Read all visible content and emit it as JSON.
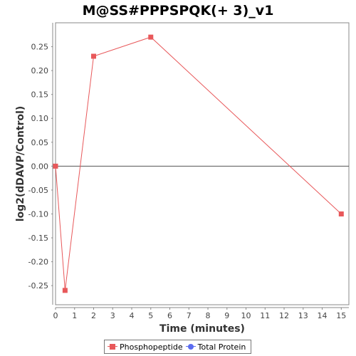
{
  "chart_data": {
    "type": "line",
    "title": "M@SS#PPPSPQK(+ 3)_v1",
    "xlabel": "Time (minutes)",
    "ylabel": "log2(dDAVP/Control)",
    "xlim": [
      0,
      15.4
    ],
    "ylim": [
      -0.29,
      0.3
    ],
    "xticks": [
      0,
      1,
      2,
      3,
      4,
      5,
      6,
      7,
      8,
      9,
      10,
      11,
      12,
      13,
      14,
      15
    ],
    "yticks": [
      -0.25,
      -0.2,
      -0.15,
      -0.1,
      -0.05,
      0.0,
      0.05,
      0.1,
      0.15,
      0.2,
      0.25
    ],
    "ytick_labels": [
      "-0.25",
      "-0.20",
      "-0.15",
      "-0.10",
      "-0.05",
      "0.00",
      "0.05",
      "0.10",
      "0.15",
      "0.20",
      "0.25"
    ],
    "zero_line": true,
    "grid": false,
    "legend_position": "bottom",
    "series": [
      {
        "name": "Phosphopeptide",
        "color": "#e8585a",
        "marker": "square",
        "x": [
          0,
          0.5,
          2,
          5,
          15
        ],
        "y": [
          0.0,
          -0.26,
          0.23,
          0.27,
          -0.1
        ]
      },
      {
        "name": "Total Protein",
        "color": "#5b6cf0",
        "marker": "circle",
        "x": [],
        "y": []
      }
    ]
  }
}
